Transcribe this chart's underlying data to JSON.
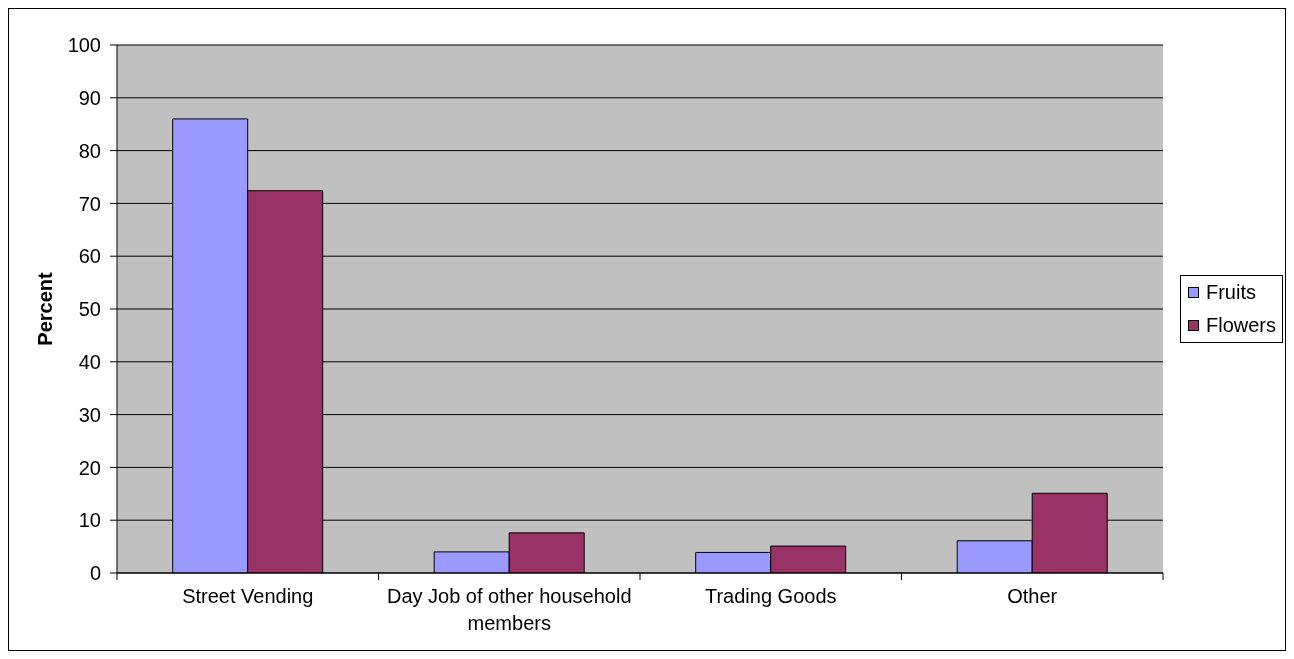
{
  "chart_data": {
    "type": "bar",
    "ylabel": "Percent",
    "categories": [
      "Street Vending",
      "Day Job of other household members",
      "Trading Goods",
      "Other"
    ],
    "series": [
      {
        "name": "Fruits",
        "color": "#9999ff",
        "values": [
          86,
          4,
          3.9,
          6.1
        ]
      },
      {
        "name": "Flowers",
        "color": "#993366",
        "values": [
          72.4,
          7.6,
          5.1,
          15.1
        ]
      }
    ],
    "ylim": [
      0,
      100
    ],
    "yticks": [
      0,
      10,
      20,
      30,
      40,
      50,
      60,
      70,
      80,
      90,
      100
    ],
    "grid": "y",
    "legend": "right"
  }
}
